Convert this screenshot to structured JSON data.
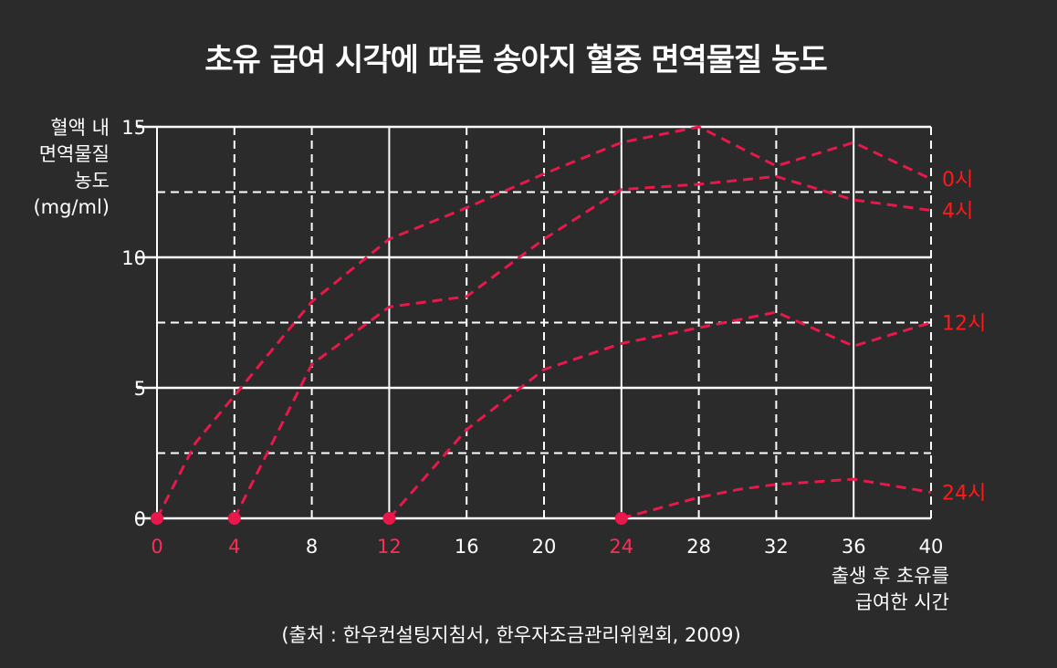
{
  "title": "초유 급여 시각에 따른 송아지 혈중 면역물질 농도",
  "ylabel_lines": [
    "혈액 내",
    "면역물질",
    "농도",
    "(mg/ml)"
  ],
  "xlabel_lines": [
    "출생 후 초유를",
    "급여한 시간"
  ],
  "source": "(출처 : 한우컨설팅지침서, 한우자조금관리위원회, 2009)",
  "colors": {
    "background": "#2b2b2b",
    "grid": "#ffffff",
    "series": "#e8194a",
    "series_label": "#ff1a1a",
    "highlight_tick": "#ff2d55"
  },
  "chart_data": {
    "type": "line",
    "xlim": [
      0,
      40
    ],
    "ylim": [
      0,
      15
    ],
    "x_ticks": [
      0,
      4,
      8,
      12,
      16,
      20,
      24,
      28,
      32,
      36,
      40
    ],
    "x_tick_labels": [
      "0",
      "4",
      "8",
      "12",
      "16",
      "20",
      "24",
      "28",
      "32",
      "36",
      "40"
    ],
    "highlighted_x_ticks": [
      0,
      4,
      12,
      24
    ],
    "y_ticks": [
      0,
      5,
      10,
      15
    ],
    "y_tick_labels": [
      "0",
      "5",
      "10",
      "15"
    ],
    "grid": true,
    "series": [
      {
        "name": "0시",
        "x": [
          0,
          2,
          4,
          8,
          12,
          16,
          20,
          24,
          28,
          32,
          36,
          40
        ],
        "y": [
          0,
          2.9,
          4.7,
          8.3,
          10.7,
          11.9,
          13.2,
          14.4,
          15.0,
          13.5,
          14.4,
          13.0
        ]
      },
      {
        "name": "4시",
        "x": [
          4,
          8,
          12,
          16,
          20,
          24,
          28,
          32,
          36,
          40
        ],
        "y": [
          0,
          5.9,
          8.1,
          8.5,
          10.7,
          12.6,
          12.8,
          13.1,
          12.2,
          11.8
        ]
      },
      {
        "name": "12시",
        "x": [
          12,
          16,
          20,
          24,
          28,
          32,
          36,
          40
        ],
        "y": [
          0,
          3.4,
          5.7,
          6.7,
          7.3,
          7.9,
          6.6,
          7.5
        ]
      },
      {
        "name": "24시",
        "x": [
          24,
          28,
          30,
          32,
          36,
          40
        ],
        "y": [
          0,
          0.8,
          1.1,
          1.3,
          1.5,
          1.0
        ]
      }
    ],
    "start_points": [
      0,
      4,
      12,
      24
    ]
  }
}
